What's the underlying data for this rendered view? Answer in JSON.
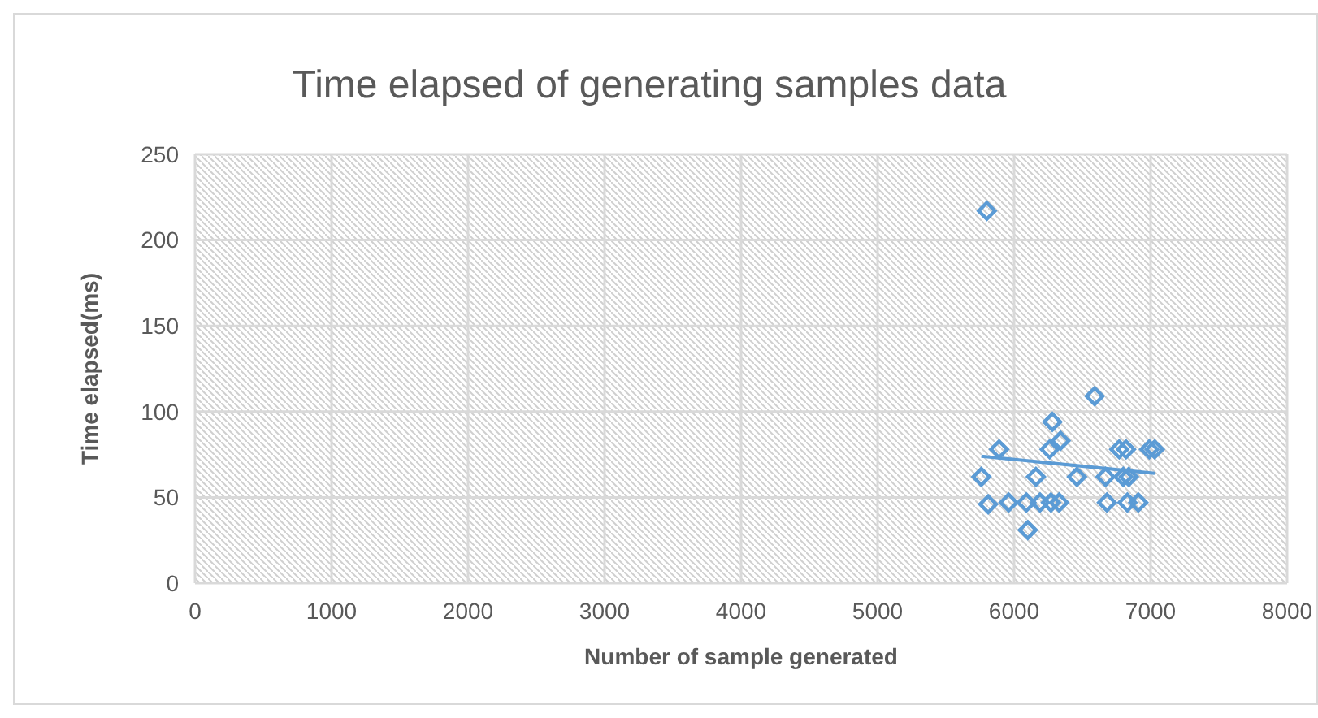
{
  "chart_data": {
    "type": "scatter",
    "title": "Time elapsed of generating samples data",
    "xlabel": "Number of sample generated",
    "ylabel": "Time elapsed(ms)",
    "xlim": [
      0,
      8000
    ],
    "xticks": [
      0,
      1000,
      2000,
      3000,
      4000,
      5000,
      6000,
      7000,
      8000
    ],
    "ylim": [
      0,
      250
    ],
    "yticks": [
      0,
      50,
      100,
      150,
      200,
      250
    ],
    "grid": true,
    "series": [
      {
        "marker": "diamond",
        "color": "#5b9bd5",
        "x": [
          5760,
          5810,
          5800,
          5890,
          5960,
          6090,
          6100,
          6160,
          6190,
          6260,
          6280,
          6270,
          6330,
          6340,
          6460,
          6590,
          6670,
          6680,
          6770,
          6820,
          6800,
          6840,
          6830,
          6910,
          6990,
          7030
        ],
        "values": [
          62,
          46,
          217,
          78,
          47,
          47,
          31,
          62,
          47,
          78,
          94,
          47,
          47,
          83,
          62,
          109,
          62,
          47,
          78,
          78,
          62,
          62,
          47,
          47,
          78,
          78
        ]
      },
      {
        "type": "line",
        "marker": "none",
        "color": "#5b9bd5",
        "x": [
          5760,
          7030
        ],
        "values": [
          74,
          64
        ]
      }
    ]
  }
}
